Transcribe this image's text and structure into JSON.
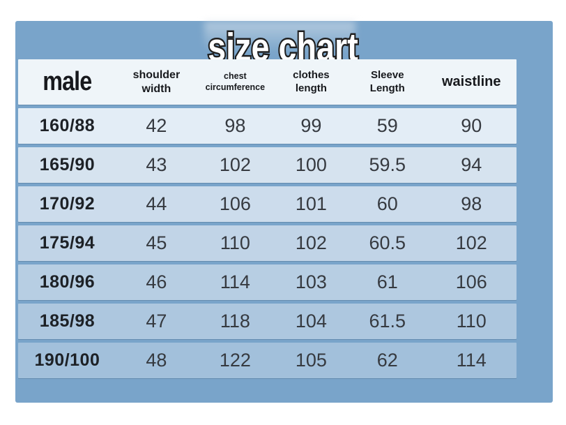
{
  "page": {
    "title": "size chart"
  },
  "colors": {
    "page_background": "#ffffff",
    "panel": "#79a4ca",
    "header_bg": "#eff5f9",
    "row_colors": [
      "#e3edf6",
      "#d6e3ef",
      "#ccdcec",
      "#c1d4e7",
      "#b7cee3",
      "#adc7df",
      "#a2c0db"
    ],
    "title_fill": "#ffffff",
    "title_outline": "#1f1f1f",
    "text_dark": "#1d2126"
  },
  "table": {
    "header": {
      "cols": [
        {
          "label": "male"
        },
        {
          "label": "shoulder width"
        },
        {
          "label": "chest circumference"
        },
        {
          "label": "clothes length"
        },
        {
          "label": "Sleeve Length"
        },
        {
          "label": "waistline"
        }
      ]
    },
    "rows": [
      {
        "size": "160/88",
        "shoulder_width": "42",
        "chest_circumference": "98",
        "clothes_length": "99",
        "sleeve_length": "59",
        "waistline": "90"
      },
      {
        "size": "165/90",
        "shoulder_width": "43",
        "chest_circumference": "102",
        "clothes_length": "100",
        "sleeve_length": "59.5",
        "waistline": "94"
      },
      {
        "size": "170/92",
        "shoulder_width": "44",
        "chest_circumference": "106",
        "clothes_length": "101",
        "sleeve_length": "60",
        "waistline": "98"
      },
      {
        "size": "175/94",
        "shoulder_width": "45",
        "chest_circumference": "110",
        "clothes_length": "102",
        "sleeve_length": "60.5",
        "waistline": "102"
      },
      {
        "size": "180/96",
        "shoulder_width": "46",
        "chest_circumference": "114",
        "clothes_length": "103",
        "sleeve_length": "61",
        "waistline": "106"
      },
      {
        "size": "185/98",
        "shoulder_width": "47",
        "chest_circumference": "118",
        "clothes_length": "104",
        "sleeve_length": "61.5",
        "waistline": "110"
      },
      {
        "size": "190/100",
        "shoulder_width": "48",
        "chest_circumference": "122",
        "clothes_length": "105",
        "sleeve_length": "62",
        "waistline": "114"
      }
    ]
  },
  "chart_data": {
    "type": "table",
    "title": "size chart",
    "group": "male",
    "columns": [
      "male",
      "shoulder width",
      "chest circumference",
      "clothes length",
      "Sleeve Length",
      "waistline"
    ],
    "rows": [
      [
        "160/88",
        42,
        98,
        99,
        59,
        90
      ],
      [
        "165/90",
        43,
        102,
        100,
        59.5,
        94
      ],
      [
        "170/92",
        44,
        106,
        101,
        60,
        98
      ],
      [
        "175/94",
        45,
        110,
        102,
        60.5,
        102
      ],
      [
        "180/96",
        46,
        114,
        103,
        61,
        106
      ],
      [
        "185/98",
        47,
        118,
        104,
        61.5,
        110
      ],
      [
        "190/100",
        48,
        122,
        105,
        62,
        114
      ]
    ]
  }
}
